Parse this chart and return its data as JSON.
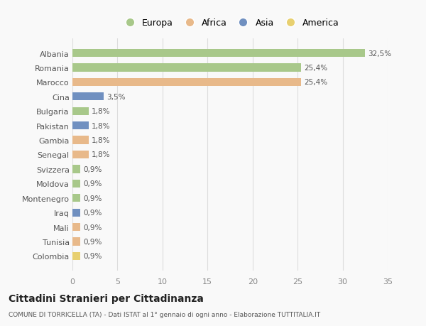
{
  "categories": [
    "Albania",
    "Romania",
    "Marocco",
    "Cina",
    "Bulgaria",
    "Pakistan",
    "Gambia",
    "Senegal",
    "Svizzera",
    "Moldova",
    "Montenegro",
    "Iraq",
    "Mali",
    "Tunisia",
    "Colombia"
  ],
  "values": [
    32.5,
    25.4,
    25.4,
    3.5,
    1.8,
    1.8,
    1.8,
    1.8,
    0.9,
    0.9,
    0.9,
    0.9,
    0.9,
    0.9,
    0.9
  ],
  "labels": [
    "32,5%",
    "25,4%",
    "25,4%",
    "3,5%",
    "1,8%",
    "1,8%",
    "1,8%",
    "1,8%",
    "0,9%",
    "0,9%",
    "0,9%",
    "0,9%",
    "0,9%",
    "0,9%",
    "0,9%"
  ],
  "continents": [
    "Europa",
    "Europa",
    "Africa",
    "Asia",
    "Europa",
    "Asia",
    "Africa",
    "Africa",
    "Europa",
    "Europa",
    "Europa",
    "Asia",
    "Africa",
    "Africa",
    "America"
  ],
  "continent_colors": {
    "Europa": "#a8c88a",
    "Africa": "#e8b98a",
    "Asia": "#7090c0",
    "America": "#e8d070"
  },
  "legend_items": [
    "Europa",
    "Africa",
    "Asia",
    "America"
  ],
  "title": "Cittadini Stranieri per Cittadinanza",
  "subtitle": "COMUNE DI TORRICELLA (TA) - Dati ISTAT al 1° gennaio di ogni anno - Elaborazione TUTTITALIA.IT",
  "xlim": [
    0,
    35
  ],
  "xticks": [
    0,
    5,
    10,
    15,
    20,
    25,
    30,
    35
  ],
  "background_color": "#f9f9f9",
  "grid_color": "#dddddd",
  "bar_height": 0.55
}
